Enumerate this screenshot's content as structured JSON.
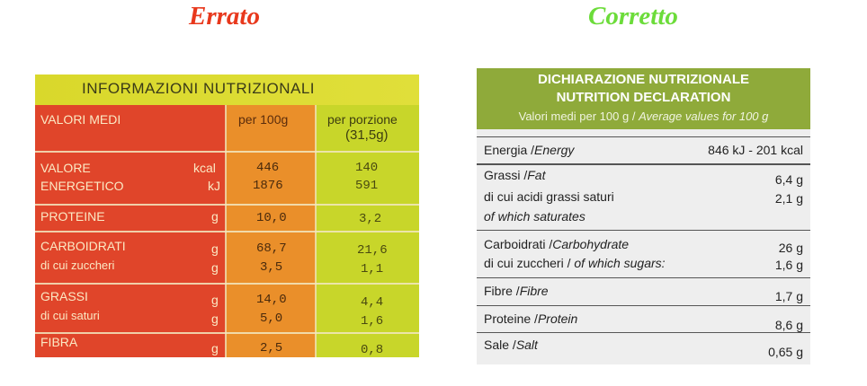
{
  "headings": {
    "left": "Errato",
    "right": "Corretto"
  },
  "left_label": {
    "title": "INFORMAZIONI NUTRIZIONALI",
    "headers": {
      "label": "VALORI MEDI",
      "per100": "per 100g",
      "portion1": "per porzione",
      "portion2": "(31,5g)"
    },
    "rows": [
      {
        "name1": "VALORE",
        "name2": "ENERGETICO",
        "unit1": "kcal",
        "unit2": "kJ",
        "v100_1": "446",
        "v100_2": "1876",
        "vp_1": "140",
        "vp_2": "591"
      },
      {
        "name1": "PROTEINE",
        "unit1": "g",
        "v100_1": "10,0",
        "vp_1": "3,2"
      },
      {
        "name1": "CARBOIDRATI",
        "name2": "di cui zuccheri",
        "unit1": "g",
        "unit2": "g",
        "v100_1": "68,7",
        "v100_2": "3,5",
        "vp_1": "21,6",
        "vp_2": "1,1"
      },
      {
        "name1": "GRASSI",
        "name2": "di cui saturi",
        "unit1": "g",
        "unit2": "g",
        "v100_1": "14,0",
        "v100_2": "5,0",
        "vp_1": "4,4",
        "vp_2": "1,6"
      },
      {
        "name1": "FIBRA",
        "unit1": "g",
        "v100_1": "2,5",
        "vp_1": "0,8"
      }
    ]
  },
  "right_label": {
    "title1": "DICHIARAZIONE NUTRIZIONALE",
    "title2": "NUTRITION DECLARATION",
    "sub_it": "Valori medi per 100 g /",
    "sub_en": "Average values for 100 g",
    "rows": [
      {
        "it": "Energia /",
        "en": "Energy",
        "value": "846 kJ - 201 kcal"
      },
      {
        "it": "Grassi /",
        "en": "Fat",
        "value": "6,4 g",
        "it2": "di cui acidi grassi saturi",
        "en2": "of which saturates",
        "value2": "2,1 g"
      },
      {
        "it": "Carboidrati /",
        "en": "Carbohydrate",
        "value": "26 g",
        "it2": "di cui zuccheri /",
        "en2": "of which sugars:",
        "value2": "1,6 g"
      },
      {
        "it": "Fibre /",
        "en": "Fibre",
        "value": "1,7 g"
      },
      {
        "it": "Proteine /",
        "en": "Protein",
        "value": "8,6 g"
      },
      {
        "it": "Sale /",
        "en": "Salt",
        "value": "0,65 g"
      }
    ]
  }
}
